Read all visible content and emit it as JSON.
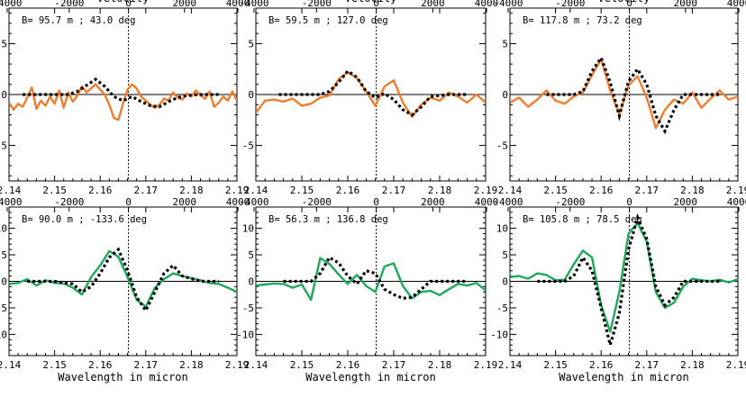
{
  "chart_data": [
    {
      "type": "line",
      "annotation": "B= 95.7 m ; 43.0 deg",
      "top_axis_title": "Velocity",
      "bottom_axis_title": "",
      "xlim": [
        2.14,
        2.19
      ],
      "ylim": [
        -8.5,
        8.5
      ],
      "x_ticks": [
        "2.14",
        "2.15",
        "2.16",
        "2.17",
        "2.18",
        "2.19"
      ],
      "x_tick_values": [
        2.14,
        2.15,
        2.16,
        2.17,
        2.18,
        2.19
      ],
      "top_ticks": [
        "-4000",
        "-2000",
        "0",
        "2000",
        "4000"
      ],
      "top_tick_values": [
        2.1396,
        2.1532,
        2.1662,
        2.1785,
        2.1902
      ],
      "y_ticks": [
        "-5",
        "0",
        "5"
      ],
      "y_tick_values": [
        -5,
        0,
        5
      ],
      "vline_x": 2.1662,
      "series": [
        {
          "role": "observed",
          "color": "#f07d2e",
          "x": [
            2.14,
            2.141,
            2.142,
            2.143,
            2.144,
            2.145,
            2.146,
            2.147,
            2.148,
            2.149,
            2.15,
            2.151,
            2.152,
            2.153,
            2.154,
            2.155,
            2.156,
            2.157,
            2.158,
            2.159,
            2.16,
            2.161,
            2.162,
            2.163,
            2.164,
            2.165,
            2.166,
            2.167,
            2.168,
            2.169,
            2.17,
            2.171,
            2.172,
            2.173,
            2.174,
            2.175,
            2.176,
            2.177,
            2.178,
            2.179,
            2.18,
            2.181,
            2.182,
            2.183,
            2.184,
            2.185,
            2.186,
            2.187,
            2.188,
            2.189,
            2.19
          ],
          "y": [
            -0.8,
            -1.5,
            -0.9,
            -1.2,
            -0.3,
            0.7,
            -1.4,
            -0.6,
            -1.1,
            -0.2,
            -0.9,
            0.4,
            -1.3,
            0.2,
            -0.7,
            -0.1,
            0.8,
            0.2,
            0.6,
            1.0,
            0.5,
            0.0,
            -1.0,
            -2.3,
            -2.5,
            -0.9,
            0.5,
            1.0,
            0.6,
            -0.2,
            -0.6,
            -1.0,
            -1.3,
            -1.0,
            -0.4,
            -0.6,
            0.2,
            -0.3,
            -0.5,
            0.1,
            -0.2,
            0.4,
            -0.1,
            -0.4,
            0.3,
            -1.2,
            -0.8,
            -0.2,
            -0.6,
            0.3,
            -0.6
          ]
        },
        {
          "role": "model",
          "color": "#000000",
          "x": [
            2.143,
            2.148,
            2.153,
            2.155,
            2.157,
            2.159,
            2.161,
            2.163,
            2.165,
            2.167,
            2.169,
            2.171,
            2.173,
            2.175,
            2.177,
            2.179,
            2.182,
            2.186
          ],
          "y": [
            0,
            0,
            0,
            0.3,
            0.9,
            1.5,
            0.8,
            -0.2,
            -0.6,
            -0.2,
            -0.7,
            -1.1,
            -1.2,
            -0.7,
            -0.3,
            -0.1,
            0,
            0
          ]
        }
      ]
    },
    {
      "type": "line",
      "annotation": "B= 59.5 m ; 127.0 deg",
      "top_axis_title": "Velocity",
      "bottom_axis_title": "",
      "xlim": [
        2.14,
        2.19
      ],
      "ylim": [
        -8.5,
        8.5
      ],
      "x_ticks": [
        "2.14",
        "2.15",
        "2.16",
        "2.17",
        "2.18",
        "2.19"
      ],
      "x_tick_values": [
        2.14,
        2.15,
        2.16,
        2.17,
        2.18,
        2.19
      ],
      "top_ticks": [
        "-4000",
        "-2000",
        "0",
        "2000",
        "4000"
      ],
      "top_tick_values": [
        2.1396,
        2.1532,
        2.1662,
        2.1785,
        2.1902
      ],
      "y_ticks": [
        "-5",
        "0",
        "5"
      ],
      "y_tick_values": [
        -5,
        0,
        5
      ],
      "vline_x": 2.1662,
      "series": [
        {
          "role": "observed",
          "color": "#f07d2e",
          "x": [
            2.14,
            2.142,
            2.144,
            2.146,
            2.148,
            2.15,
            2.152,
            2.154,
            2.156,
            2.158,
            2.16,
            2.162,
            2.164,
            2.166,
            2.168,
            2.17,
            2.172,
            2.174,
            2.176,
            2.178,
            2.18,
            2.182,
            2.184,
            2.186,
            2.188,
            2.19
          ],
          "y": [
            -1.8,
            -0.6,
            -0.5,
            -0.7,
            -0.4,
            -1.1,
            -0.9,
            -0.3,
            -0.1,
            1.5,
            2.2,
            1.6,
            0.3,
            -1.1,
            0.8,
            1.4,
            -0.8,
            -2.2,
            -1.0,
            -0.3,
            -0.6,
            0.2,
            -0.2,
            -0.8,
            0.0,
            -0.8
          ]
        },
        {
          "role": "model",
          "color": "#000000",
          "x": [
            2.145,
            2.15,
            2.154,
            2.156,
            2.158,
            2.16,
            2.162,
            2.164,
            2.166,
            2.168,
            2.17,
            2.172,
            2.174,
            2.176,
            2.178,
            2.182,
            2.186
          ],
          "y": [
            0,
            0,
            0,
            0.3,
            1.2,
            2.3,
            1.7,
            0.3,
            -0.3,
            0.1,
            -0.5,
            -1.5,
            -2.0,
            -1.2,
            -0.2,
            0,
            0
          ]
        }
      ]
    },
    {
      "type": "line",
      "annotation": "B= 117.8 m ; 73.2 deg",
      "top_axis_title": "Velocity",
      "bottom_axis_title": "",
      "xlim": [
        2.14,
        2.19
      ],
      "ylim": [
        -8.5,
        8.5
      ],
      "x_ticks": [
        "2.14",
        "2.15",
        "2.16",
        "2.17",
        "2.18",
        "2.19"
      ],
      "x_tick_values": [
        2.14,
        2.15,
        2.16,
        2.17,
        2.18,
        2.19
      ],
      "top_ticks": [
        "-4000",
        "-2000",
        "0",
        "2000",
        "4000"
      ],
      "top_tick_values": [
        2.1396,
        2.1532,
        2.1662,
        2.1785,
        2.1902
      ],
      "y_ticks": [
        "-5",
        "0",
        "5"
      ],
      "y_tick_values": [
        -5,
        0,
        5
      ],
      "vline_x": 2.1662,
      "series": [
        {
          "role": "observed",
          "color": "#f07d2e",
          "x": [
            2.14,
            2.142,
            2.144,
            2.146,
            2.148,
            2.15,
            2.152,
            2.154,
            2.156,
            2.158,
            2.16,
            2.162,
            2.164,
            2.166,
            2.168,
            2.17,
            2.172,
            2.174,
            2.176,
            2.178,
            2.18,
            2.182,
            2.184,
            2.186,
            2.188,
            2.19
          ],
          "y": [
            -0.8,
            -0.3,
            -1.2,
            -0.5,
            0.4,
            -0.6,
            -0.9,
            -0.2,
            0.2,
            1.9,
            3.5,
            0.4,
            -1.9,
            0.9,
            1.8,
            -0.3,
            -3.3,
            -1.5,
            -0.5,
            -0.9,
            0.2,
            -1.3,
            -0.4,
            0.4,
            -0.5,
            -0.2
          ]
        },
        {
          "role": "model",
          "color": "#000000",
          "x": [
            2.148,
            2.152,
            2.154,
            2.156,
            2.158,
            2.16,
            2.162,
            2.164,
            2.166,
            2.168,
            2.17,
            2.172,
            2.174,
            2.176,
            2.178,
            2.182,
            2.186
          ],
          "y": [
            0,
            0,
            0,
            0.3,
            2.3,
            3.6,
            1.2,
            -2.1,
            1.3,
            2.5,
            1.0,
            -2.1,
            -3.6,
            -1.5,
            0,
            0,
            0
          ]
        }
      ]
    },
    {
      "type": "line",
      "annotation": "B= 90.0 m ; -133.6 deg",
      "top_axis_title": "",
      "bottom_axis_title": "Wavelength in micron",
      "xlim": [
        2.14,
        2.19
      ],
      "ylim": [
        -14,
        14
      ],
      "x_ticks": [
        "2.14",
        "2.15",
        "2.16",
        "2.17",
        "2.18",
        "2.19"
      ],
      "x_tick_values": [
        2.14,
        2.15,
        2.16,
        2.17,
        2.18,
        2.19
      ],
      "top_ticks": [
        "-4000",
        "-2000",
        "0",
        "2000",
        "4000"
      ],
      "top_tick_values": [
        2.1396,
        2.1532,
        2.1662,
        2.1785,
        2.1902
      ],
      "y_ticks": [
        "-10",
        "-5",
        "0",
        "5",
        "10"
      ],
      "y_tick_values": [
        -10,
        -5,
        0,
        5,
        10
      ],
      "vline_x": 2.1662,
      "series": [
        {
          "role": "observed",
          "color": "#1fa85b",
          "x": [
            2.14,
            2.142,
            2.144,
            2.146,
            2.148,
            2.15,
            2.152,
            2.154,
            2.156,
            2.158,
            2.16,
            2.162,
            2.164,
            2.166,
            2.168,
            2.17,
            2.172,
            2.174,
            2.176,
            2.178,
            2.18,
            2.182,
            2.184,
            2.186,
            2.188,
            2.19
          ],
          "y": [
            -0.5,
            -0.3,
            0.4,
            -0.8,
            0.2,
            -0.3,
            -0.4,
            -1.2,
            -2.5,
            0.8,
            3.0,
            5.7,
            4.6,
            0.8,
            -3.5,
            -4.8,
            -1.2,
            0.4,
            1.5,
            1.0,
            0.6,
            0.2,
            -0.3,
            -0.5,
            -1.2,
            -2.0
          ]
        },
        {
          "role": "model",
          "color": "#000000",
          "x": [
            2.144,
            2.15,
            2.154,
            2.156,
            2.158,
            2.16,
            2.162,
            2.164,
            2.166,
            2.168,
            2.17,
            2.172,
            2.174,
            2.176,
            2.178,
            2.182,
            2.186
          ],
          "y": [
            0,
            0,
            -0.5,
            -2.0,
            -1.0,
            1.5,
            4.5,
            6.0,
            2.0,
            -3.0,
            -5.5,
            -2.0,
            1.5,
            3.0,
            1.0,
            0,
            0
          ]
        }
      ]
    },
    {
      "type": "line",
      "annotation": "B= 56.3 m ; 136.8 deg",
      "top_axis_title": "",
      "bottom_axis_title": "Wavelength in micron",
      "xlim": [
        2.14,
        2.19
      ],
      "ylim": [
        -14,
        14
      ],
      "x_ticks": [
        "2.14",
        "2.15",
        "2.16",
        "2.17",
        "2.18",
        "2.19"
      ],
      "x_tick_values": [
        2.14,
        2.15,
        2.16,
        2.17,
        2.18,
        2.19
      ],
      "top_ticks": [
        "-4000",
        "-2000",
        "0",
        "2000",
        "4000"
      ],
      "top_tick_values": [
        2.1396,
        2.1532,
        2.1662,
        2.1785,
        2.1902
      ],
      "y_ticks": [
        "-10",
        "-5",
        "0",
        "5",
        "10"
      ],
      "y_tick_values": [
        -10,
        -5,
        0,
        5,
        10
      ],
      "vline_x": 2.1662,
      "series": [
        {
          "role": "observed",
          "color": "#1fa85b",
          "x": [
            2.14,
            2.142,
            2.144,
            2.146,
            2.148,
            2.15,
            2.152,
            2.154,
            2.156,
            2.158,
            2.16,
            2.162,
            2.164,
            2.166,
            2.168,
            2.17,
            2.172,
            2.174,
            2.176,
            2.178,
            2.18,
            2.182,
            2.184,
            2.186,
            2.188,
            2.19
          ],
          "y": [
            -0.8,
            -0.6,
            -0.4,
            -0.5,
            -1.2,
            -0.6,
            -3.5,
            4.4,
            3.3,
            1.3,
            -0.5,
            1.2,
            -0.9,
            -2.0,
            2.8,
            3.4,
            -0.9,
            -3.2,
            -2.0,
            -1.8,
            -2.6,
            -1.5,
            -0.5,
            -0.8,
            -0.3,
            -1.7
          ]
        },
        {
          "role": "model",
          "color": "#000000",
          "x": [
            2.146,
            2.15,
            2.152,
            2.154,
            2.156,
            2.158,
            2.16,
            2.162,
            2.164,
            2.166,
            2.168,
            2.17,
            2.172,
            2.174,
            2.176,
            2.178,
            2.182,
            2.186
          ],
          "y": [
            0,
            0,
            0,
            1.5,
            4.5,
            3.5,
            1.0,
            -0.5,
            2.0,
            1.5,
            -1.5,
            -2.5,
            -3.2,
            -3.0,
            -1.5,
            0,
            0,
            0
          ]
        }
      ]
    },
    {
      "type": "line",
      "annotation": "B= 105.8 m ; 78.5 deg",
      "top_axis_title": "",
      "bottom_axis_title": "Wavelength in micron",
      "xlim": [
        2.14,
        2.19
      ],
      "ylim": [
        -14,
        14
      ],
      "x_ticks": [
        "2.14",
        "2.15",
        "2.16",
        "2.17",
        "2.18",
        "2.19"
      ],
      "x_tick_values": [
        2.14,
        2.15,
        2.16,
        2.17,
        2.18,
        2.19
      ],
      "top_ticks": [
        "-4000",
        "-2000",
        "0",
        "2000",
        "4000"
      ],
      "top_tick_values": [
        2.1396,
        2.1532,
        2.1662,
        2.1785,
        2.1902
      ],
      "y_ticks": [
        "-10",
        "-5",
        "0",
        "5",
        "10"
      ],
      "y_tick_values": [
        -10,
        -5,
        0,
        5,
        10
      ],
      "vline_x": 2.1662,
      "series": [
        {
          "role": "observed",
          "color": "#1fa85b",
          "x": [
            2.14,
            2.142,
            2.144,
            2.146,
            2.148,
            2.15,
            2.152,
            2.154,
            2.156,
            2.158,
            2.16,
            2.162,
            2.164,
            2.166,
            2.168,
            2.17,
            2.172,
            2.174,
            2.176,
            2.178,
            2.18,
            2.182,
            2.184,
            2.186,
            2.188,
            2.19
          ],
          "y": [
            0.8,
            1.0,
            0.5,
            1.5,
            1.2,
            0.2,
            0.3,
            3.2,
            5.8,
            4.5,
            -4.5,
            -9.5,
            -2.0,
            9.0,
            11.0,
            7.5,
            -2.0,
            -5.0,
            -4.0,
            -1.0,
            0.5,
            0.2,
            0.0,
            0.3,
            -0.2,
            0.4
          ]
        },
        {
          "role": "model",
          "color": "#000000",
          "x": [
            2.146,
            2.15,
            2.152,
            2.154,
            2.156,
            2.158,
            2.16,
            2.162,
            2.164,
            2.166,
            2.168,
            2.17,
            2.172,
            2.174,
            2.176,
            2.178,
            2.182,
            2.186
          ],
          "y": [
            0,
            0,
            0,
            1.0,
            4.5,
            2.0,
            -5.0,
            -12.0,
            -6.0,
            6.0,
            12.0,
            8.0,
            -1.0,
            -4.5,
            -3.0,
            0,
            0,
            0
          ]
        }
      ]
    }
  ]
}
